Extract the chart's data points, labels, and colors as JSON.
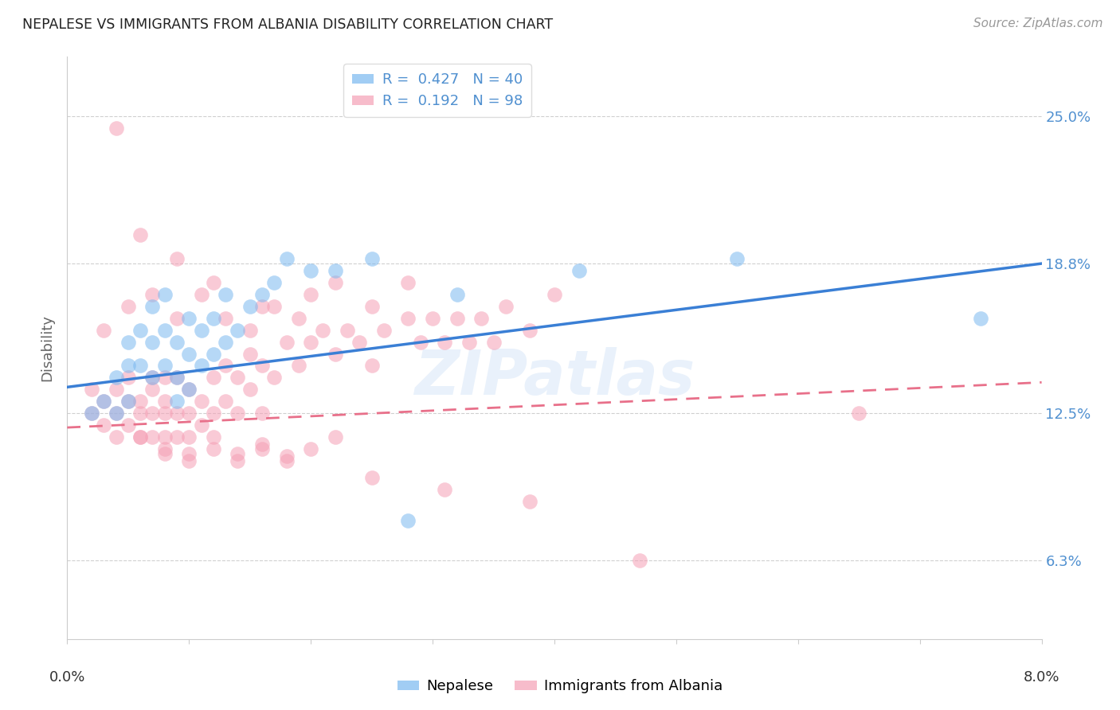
{
  "title": "NEPALESE VS IMMIGRANTS FROM ALBANIA DISABILITY CORRELATION CHART",
  "source": "Source: ZipAtlas.com",
  "ylabel": "Disability",
  "ytick_labels": [
    "25.0%",
    "18.8%",
    "12.5%",
    "6.3%"
  ],
  "ytick_values": [
    0.25,
    0.188,
    0.125,
    0.063
  ],
  "xmin": 0.0,
  "xmax": 0.08,
  "ymin": 0.03,
  "ymax": 0.275,
  "blue_R": "0.427",
  "blue_N": "40",
  "pink_R": "0.192",
  "pink_N": "98",
  "legend_label_blue": "Nepalese",
  "legend_label_pink": "Immigrants from Albania",
  "blue_color": "#7ab8f0",
  "pink_color": "#f5a0b5",
  "blue_line_color": "#3a7fd5",
  "pink_line_color": "#e8708a",
  "watermark": "ZIPatlas",
  "blue_scatter_x": [
    0.002,
    0.003,
    0.004,
    0.004,
    0.005,
    0.005,
    0.005,
    0.006,
    0.006,
    0.007,
    0.007,
    0.007,
    0.008,
    0.008,
    0.008,
    0.009,
    0.009,
    0.009,
    0.01,
    0.01,
    0.01,
    0.011,
    0.011,
    0.012,
    0.012,
    0.013,
    0.013,
    0.014,
    0.015,
    0.016,
    0.017,
    0.018,
    0.02,
    0.022,
    0.025,
    0.028,
    0.032,
    0.042,
    0.055,
    0.075
  ],
  "blue_scatter_y": [
    0.125,
    0.13,
    0.14,
    0.125,
    0.155,
    0.145,
    0.13,
    0.16,
    0.145,
    0.17,
    0.155,
    0.14,
    0.175,
    0.16,
    0.145,
    0.155,
    0.14,
    0.13,
    0.165,
    0.15,
    0.135,
    0.16,
    0.145,
    0.165,
    0.15,
    0.175,
    0.155,
    0.16,
    0.17,
    0.175,
    0.18,
    0.19,
    0.185,
    0.185,
    0.19,
    0.08,
    0.175,
    0.185,
    0.19,
    0.165
  ],
  "pink_scatter_x": [
    0.002,
    0.002,
    0.003,
    0.003,
    0.004,
    0.004,
    0.004,
    0.005,
    0.005,
    0.005,
    0.006,
    0.006,
    0.006,
    0.007,
    0.007,
    0.007,
    0.007,
    0.008,
    0.008,
    0.008,
    0.008,
    0.009,
    0.009,
    0.009,
    0.01,
    0.01,
    0.01,
    0.011,
    0.011,
    0.012,
    0.012,
    0.013,
    0.013,
    0.014,
    0.014,
    0.015,
    0.015,
    0.016,
    0.016,
    0.017,
    0.018,
    0.019,
    0.02,
    0.021,
    0.022,
    0.023,
    0.024,
    0.025,
    0.026,
    0.028,
    0.029,
    0.03,
    0.031,
    0.032,
    0.033,
    0.034,
    0.035,
    0.036,
    0.038,
    0.04,
    0.003,
    0.005,
    0.007,
    0.009,
    0.011,
    0.013,
    0.015,
    0.017,
    0.019,
    0.022,
    0.025,
    0.028,
    0.008,
    0.01,
    0.012,
    0.014,
    0.016,
    0.018,
    0.006,
    0.008,
    0.01,
    0.012,
    0.014,
    0.016,
    0.018,
    0.02,
    0.022,
    0.004,
    0.006,
    0.009,
    0.012,
    0.016,
    0.02,
    0.025,
    0.031,
    0.038,
    0.047,
    0.065
  ],
  "pink_scatter_y": [
    0.125,
    0.135,
    0.12,
    0.13,
    0.125,
    0.115,
    0.135,
    0.13,
    0.12,
    0.14,
    0.115,
    0.13,
    0.125,
    0.14,
    0.125,
    0.115,
    0.135,
    0.125,
    0.14,
    0.115,
    0.13,
    0.125,
    0.14,
    0.115,
    0.135,
    0.125,
    0.115,
    0.13,
    0.12,
    0.14,
    0.125,
    0.145,
    0.13,
    0.14,
    0.125,
    0.15,
    0.135,
    0.145,
    0.125,
    0.14,
    0.155,
    0.145,
    0.155,
    0.16,
    0.15,
    0.16,
    0.155,
    0.145,
    0.16,
    0.165,
    0.155,
    0.165,
    0.155,
    0.165,
    0.155,
    0.165,
    0.155,
    0.17,
    0.16,
    0.175,
    0.16,
    0.17,
    0.175,
    0.165,
    0.175,
    0.165,
    0.16,
    0.17,
    0.165,
    0.18,
    0.17,
    0.18,
    0.108,
    0.105,
    0.11,
    0.105,
    0.11,
    0.105,
    0.115,
    0.11,
    0.108,
    0.115,
    0.108,
    0.112,
    0.107,
    0.11,
    0.115,
    0.245,
    0.2,
    0.19,
    0.18,
    0.17,
    0.175,
    0.098,
    0.093,
    0.088,
    0.063,
    0.125
  ]
}
